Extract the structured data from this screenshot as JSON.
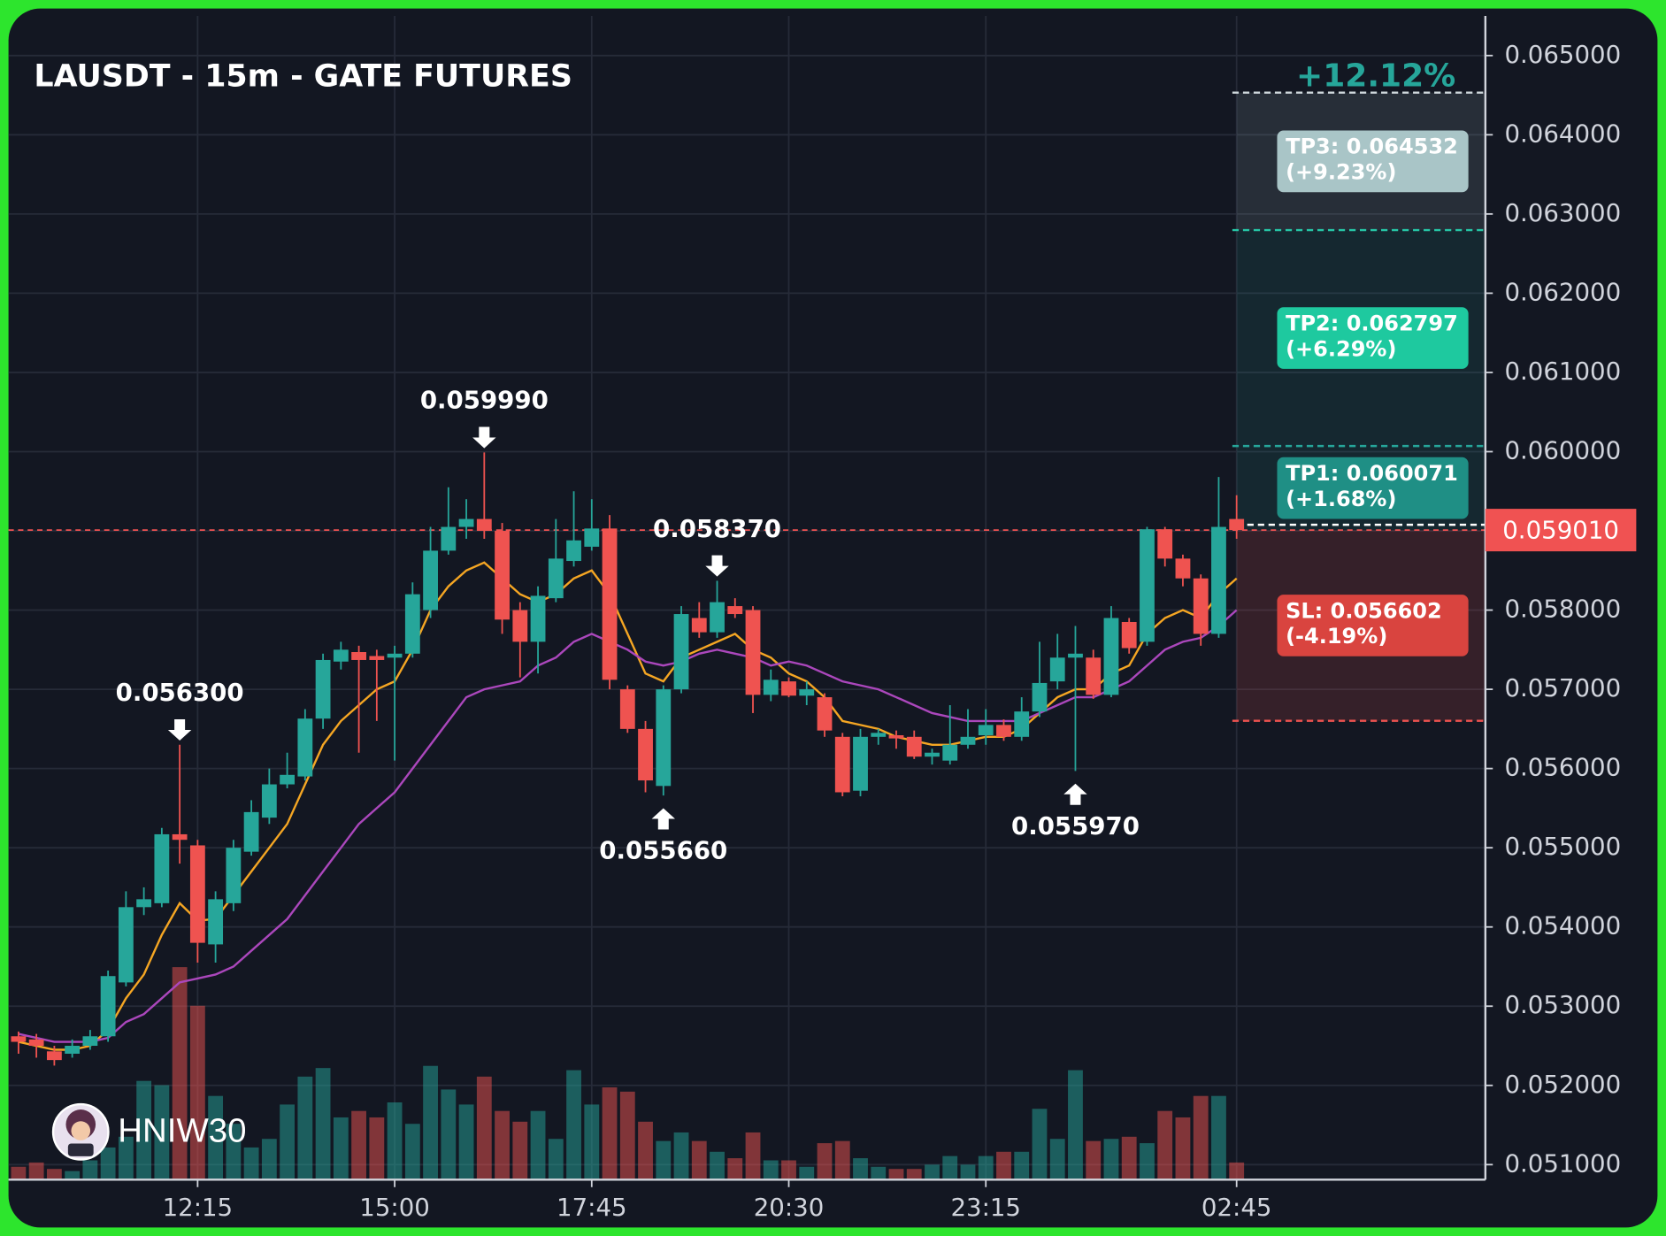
{
  "chart_data": {
    "type": "candlestick",
    "title": "LAUSDT - 15m - GATE FUTURES",
    "headline_change": "+12.12%",
    "watermark": "HNIW30",
    "up_color": "#26a69a",
    "down_color": "#ef5350",
    "grid": true,
    "ylim": [
      0.05081,
      0.0655
    ],
    "yticks": [
      {
        "value": 0.065,
        "label": "0.065000"
      },
      {
        "value": 0.064,
        "label": "0.064000"
      },
      {
        "value": 0.063,
        "label": "0.063000"
      },
      {
        "value": 0.062,
        "label": "0.062000"
      },
      {
        "value": 0.061,
        "label": "0.061000"
      },
      {
        "value": 0.06,
        "label": "0.060000"
      },
      {
        "value": 0.059,
        "label": "0.059000"
      },
      {
        "value": 0.058,
        "label": "0.058000"
      },
      {
        "value": 0.057,
        "label": "0.057000"
      },
      {
        "value": 0.056,
        "label": "0.056000"
      },
      {
        "value": 0.055,
        "label": "0.055000"
      },
      {
        "value": 0.054,
        "label": "0.054000"
      },
      {
        "value": 0.053,
        "label": "0.053000"
      },
      {
        "value": 0.052,
        "label": "0.052000"
      },
      {
        "value": 0.051,
        "label": "0.051000"
      }
    ],
    "xticks": [
      "12:15",
      "15:00",
      "17:45",
      "20:30",
      "23:15",
      "02:45"
    ],
    "x": [
      "09:45",
      "10:00",
      "10:15",
      "10:30",
      "10:45",
      "11:00",
      "11:15",
      "11:30",
      "11:45",
      "12:00",
      "12:15",
      "12:30",
      "12:45",
      "13:00",
      "13:15",
      "13:30",
      "13:45",
      "14:00",
      "14:15",
      "14:30",
      "14:45",
      "15:00",
      "15:15",
      "15:30",
      "15:45",
      "16:00",
      "16:15",
      "16:30",
      "16:45",
      "17:00",
      "17:15",
      "17:30",
      "17:45",
      "18:00",
      "18:15",
      "18:30",
      "18:45",
      "19:00",
      "19:15",
      "19:30",
      "19:45",
      "20:00",
      "20:15",
      "20:30",
      "20:45",
      "21:00",
      "21:15",
      "21:30",
      "21:45",
      "22:00",
      "22:15",
      "22:30",
      "22:45",
      "23:00",
      "23:15",
      "23:30",
      "23:45",
      "00:00",
      "00:15",
      "00:30",
      "00:45",
      "01:00",
      "01:15",
      "01:30",
      "01:45",
      "02:00",
      "02:15",
      "02:30",
      "02:45"
    ],
    "open": [
      0.05262,
      0.05258,
      0.05243,
      0.0524,
      0.0525,
      0.05262,
      0.0533,
      0.05425,
      0.0543,
      0.05517,
      0.05503,
      0.05378,
      0.0543,
      0.05495,
      0.05538,
      0.0558,
      0.0559,
      0.05663,
      0.05735,
      0.05747,
      0.05742,
      0.0574,
      0.05745,
      0.058,
      0.05875,
      0.05905,
      0.05915,
      0.059,
      0.058,
      0.0576,
      0.05815,
      0.05862,
      0.0588,
      0.05903,
      0.057,
      0.0565,
      0.05578,
      0.057,
      0.0579,
      0.05772,
      0.05805,
      0.058,
      0.05693,
      0.0571,
      0.05692,
      0.0569,
      0.0564,
      0.05572,
      0.0564,
      0.05642,
      0.0564,
      0.05615,
      0.0561,
      0.0563,
      0.05642,
      0.05655,
      0.0564,
      0.05672,
      0.0571,
      0.0574,
      0.0574,
      0.05693,
      0.05785,
      0.0576,
      0.05902,
      0.05865,
      0.0584,
      0.0577,
      0.05915
    ],
    "high": [
      0.05268,
      0.05265,
      0.0525,
      0.05258,
      0.0527,
      0.05345,
      0.05445,
      0.0545,
      0.05525,
      0.0563,
      0.0551,
      0.05445,
      0.0551,
      0.0556,
      0.056,
      0.0562,
      0.05675,
      0.05745,
      0.0576,
      0.05755,
      0.0575,
      0.05755,
      0.05835,
      0.05905,
      0.05955,
      0.0594,
      0.05999,
      0.0591,
      0.0581,
      0.0583,
      0.05915,
      0.0595,
      0.0594,
      0.0592,
      0.05705,
      0.0566,
      0.05705,
      0.05805,
      0.0581,
      0.05837,
      0.05815,
      0.05805,
      0.05725,
      0.05715,
      0.0571,
      0.05695,
      0.05645,
      0.0565,
      0.0565,
      0.05648,
      0.05648,
      0.05625,
      0.0568,
      0.05675,
      0.05675,
      0.05662,
      0.0569,
      0.0576,
      0.0577,
      0.0578,
      0.0575,
      0.05805,
      0.0579,
      0.05905,
      0.05905,
      0.0587,
      0.05845,
      0.05968,
      0.05945
    ],
    "low": [
      0.0524,
      0.05235,
      0.05225,
      0.05235,
      0.05245,
      0.05255,
      0.05325,
      0.05415,
      0.05425,
      0.0548,
      0.05355,
      0.05355,
      0.0542,
      0.0549,
      0.0553,
      0.05575,
      0.05585,
      0.0565,
      0.05725,
      0.0562,
      0.0566,
      0.0561,
      0.0574,
      0.0579,
      0.0587,
      0.0589,
      0.0589,
      0.0577,
      0.05715,
      0.0572,
      0.0581,
      0.05855,
      0.05875,
      0.057,
      0.05645,
      0.0557,
      0.05566,
      0.05695,
      0.05765,
      0.05765,
      0.0579,
      0.0567,
      0.05685,
      0.0569,
      0.0568,
      0.0564,
      0.05565,
      0.05565,
      0.0563,
      0.05625,
      0.05612,
      0.05605,
      0.05605,
      0.05625,
      0.0563,
      0.05635,
      0.05635,
      0.05665,
      0.057,
      0.05597,
      0.05688,
      0.0569,
      0.05745,
      0.05755,
      0.05855,
      0.0583,
      0.05755,
      0.05765,
      0.0589
    ],
    "close": [
      0.05255,
      0.0525,
      0.05232,
      0.0525,
      0.05262,
      0.05338,
      0.05425,
      0.05435,
      0.05517,
      0.0551,
      0.0538,
      0.05435,
      0.055,
      0.05545,
      0.0558,
      0.05592,
      0.05663,
      0.05737,
      0.0575,
      0.05737,
      0.05737,
      0.05745,
      0.0582,
      0.05875,
      0.05905,
      0.05915,
      0.059,
      0.05788,
      0.0576,
      0.05818,
      0.05865,
      0.05888,
      0.05903,
      0.05712,
      0.0565,
      0.05585,
      0.057,
      0.05795,
      0.05772,
      0.0581,
      0.05795,
      0.05693,
      0.05712,
      0.05692,
      0.057,
      0.05648,
      0.0557,
      0.0564,
      0.05645,
      0.05638,
      0.05615,
      0.0562,
      0.0563,
      0.0564,
      0.05655,
      0.0564,
      0.05672,
      0.05708,
      0.0574,
      0.05745,
      0.05693,
      0.0579,
      0.05752,
      0.05902,
      0.05865,
      0.0584,
      0.0577,
      0.05905,
      0.05901
    ],
    "volume": [
      12,
      16,
      10,
      8,
      18,
      30,
      40,
      92,
      88,
      198,
      162,
      78,
      52,
      30,
      38,
      70,
      96,
      104,
      58,
      64,
      58,
      72,
      52,
      106,
      84,
      70,
      96,
      64,
      54,
      64,
      38,
      102,
      70,
      86,
      82,
      54,
      36,
      44,
      36,
      26,
      20,
      44,
      18,
      18,
      12,
      34,
      36,
      20,
      12,
      10,
      10,
      14,
      22,
      14,
      22,
      26,
      26,
      66,
      38,
      102,
      36,
      38,
      40,
      34,
      64,
      58,
      78,
      78,
      16
    ],
    "lines": [
      {
        "color": "#f5a623",
        "values": [
          0.05255,
          0.0525,
          0.05245,
          0.05245,
          0.0525,
          0.0527,
          0.0531,
          0.0534,
          0.0539,
          0.0543,
          0.05408,
          0.0541,
          0.0544,
          0.0547,
          0.055,
          0.0553,
          0.0558,
          0.0563,
          0.0566,
          0.0568,
          0.057,
          0.0571,
          0.0575,
          0.058,
          0.0583,
          0.0585,
          0.0586,
          0.0584,
          0.0582,
          0.0581,
          0.0582,
          0.0584,
          0.0585,
          0.0582,
          0.0577,
          0.0572,
          0.0571,
          0.0574,
          0.0575,
          0.0576,
          0.0577,
          0.0575,
          0.0574,
          0.0572,
          0.0571,
          0.0569,
          0.0566,
          0.05655,
          0.0565,
          0.0564,
          0.05635,
          0.0563,
          0.0563,
          0.05635,
          0.0564,
          0.0564,
          0.0565,
          0.0567,
          0.0569,
          0.057,
          0.057,
          0.0572,
          0.0573,
          0.0577,
          0.0579,
          0.058,
          0.0579,
          0.0582,
          0.0584
        ]
      },
      {
        "color": "#ab47bc",
        "values": [
          0.05265,
          0.0526,
          0.05255,
          0.05255,
          0.05255,
          0.0526,
          0.0528,
          0.0529,
          0.0531,
          0.0533,
          0.05335,
          0.0534,
          0.0535,
          0.0537,
          0.0539,
          0.0541,
          0.0544,
          0.0547,
          0.055,
          0.0553,
          0.0555,
          0.0557,
          0.056,
          0.0563,
          0.0566,
          0.0569,
          0.057,
          0.05705,
          0.0571,
          0.0573,
          0.0574,
          0.0576,
          0.0577,
          0.0576,
          0.0575,
          0.05735,
          0.0573,
          0.05735,
          0.05745,
          0.0575,
          0.05745,
          0.0574,
          0.0573,
          0.05735,
          0.0573,
          0.0572,
          0.0571,
          0.05705,
          0.057,
          0.0569,
          0.0568,
          0.0567,
          0.05665,
          0.0566,
          0.0566,
          0.0566,
          0.0566,
          0.0567,
          0.0568,
          0.0569,
          0.0569,
          0.057,
          0.0571,
          0.0573,
          0.0575,
          0.0576,
          0.05765,
          0.0578,
          0.058
        ]
      }
    ],
    "annotations": [
      {
        "label": "0.056300",
        "value": 0.0563,
        "x": "12:00",
        "position": "above"
      },
      {
        "label": "0.059990",
        "value": 0.05999,
        "x": "16:15",
        "position": "above"
      },
      {
        "label": "0.055660",
        "value": 0.05566,
        "x": "18:45",
        "position": "below"
      },
      {
        "label": "0.058370",
        "value": 0.05837,
        "x": "19:30",
        "position": "above"
      },
      {
        "label": "0.055970",
        "value": 0.05597,
        "x": "00:30",
        "position": "below"
      }
    ],
    "entry": {
      "value": 0.05901,
      "label": "0.059010",
      "color": "#f05252"
    },
    "targets": [
      {
        "label": "TP3: 0.064532",
        "change": "(+9.23%)",
        "value": 0.064532,
        "color": "#a9c5c7",
        "line_color": "#cfd8dc"
      },
      {
        "label": "TP2: 0.062797",
        "change": "(+6.29%)",
        "value": 0.062797,
        "color": "#1ec99f",
        "line_color": "#26c6a6"
      },
      {
        "label": "TP1: 0.060071",
        "change": "(+1.68%)",
        "value": 0.060071,
        "color": "#1f8f85",
        "line_color": "#26a69a"
      },
      {
        "label": "SL: 0.056602",
        "change": "(-4.19%)",
        "value": 0.056602,
        "color": "#d9443f",
        "line_color": "#ef5350"
      }
    ]
  }
}
